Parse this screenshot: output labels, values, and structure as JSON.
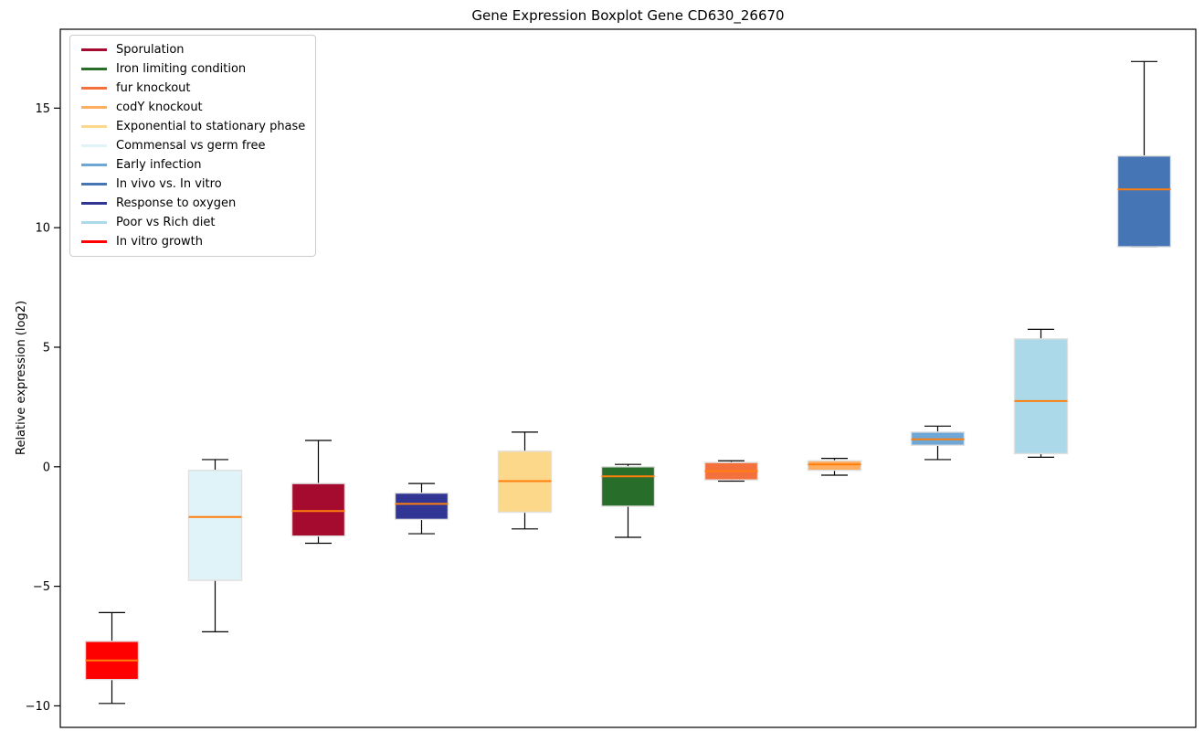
{
  "chart_data": {
    "type": "boxplot",
    "title": "Gene Expression Boxplot Gene CD630_26670",
    "ylabel": "Relative expression (log2)",
    "xlabel": "",
    "ylim": [
      -10.9,
      18.3
    ],
    "yticks": [
      {
        "value": 15,
        "label": "15"
      },
      {
        "value": 10,
        "label": "10"
      },
      {
        "value": 5,
        "label": "5"
      },
      {
        "value": 0,
        "label": "0"
      },
      {
        "value": -5,
        "label": "−5"
      },
      {
        "value": -10,
        "label": "−10"
      }
    ],
    "grid": false,
    "x_tick_labels_visible": false,
    "median_color": "#ff7f0e",
    "whisker_color": "#000000",
    "box_edge_color": "#e0e0e0",
    "series": [
      {
        "name": "In vitro growth",
        "color": "#ff0000",
        "whisker_low": -9.9,
        "q1": -8.9,
        "median": -8.1,
        "q3": -7.3,
        "whisker_high": -6.1
      },
      {
        "name": "Commensal vs germ free",
        "color": "#e0f3f8",
        "whisker_low": -6.9,
        "q1": -4.75,
        "median": -2.1,
        "q3": -0.15,
        "whisker_high": 0.3
      },
      {
        "name": "Sporulation",
        "color": "#a50b2e",
        "whisker_low": -3.2,
        "q1": -2.9,
        "median": -1.85,
        "q3": -0.7,
        "whisker_high": 1.1
      },
      {
        "name": "Response to oxygen",
        "color": "#313695",
        "whisker_low": -2.8,
        "q1": -2.2,
        "median": -1.55,
        "q3": -1.1,
        "whisker_high": -0.7
      },
      {
        "name": "Exponential to stationary phase",
        "color": "#fcd98a",
        "whisker_low": -2.6,
        "q1": -1.9,
        "median": -0.6,
        "q3": 0.65,
        "whisker_high": 1.45
      },
      {
        "name": "Iron limiting condition",
        "color": "#286e2a",
        "whisker_low": -2.95,
        "q1": -1.65,
        "median": -0.4,
        "q3": 0.0,
        "whisker_high": 0.1
      },
      {
        "name": "fur knockout",
        "color": "#f4713d",
        "whisker_low": -0.6,
        "q1": -0.55,
        "median": -0.18,
        "q3": 0.18,
        "whisker_high": 0.25
      },
      {
        "name": "codY knockout",
        "color": "#fdae61",
        "whisker_low": -0.35,
        "q1": -0.15,
        "median": 0.1,
        "q3": 0.25,
        "whisker_high": 0.35
      },
      {
        "name": "Early infection",
        "color": "#6ea6d6",
        "whisker_low": 0.3,
        "q1": 0.9,
        "median": 1.15,
        "q3": 1.45,
        "whisker_high": 1.7
      },
      {
        "name": "Poor vs Rich diet",
        "color": "#abd9e9",
        "whisker_low": 0.4,
        "q1": 0.55,
        "median": 2.75,
        "q3": 5.35,
        "whisker_high": 5.75
      },
      {
        "name": "In vivo vs. In vitro",
        "color": "#4575b4",
        "whisker_low": 9.2,
        "q1": 9.2,
        "median": 11.6,
        "q3": 13.0,
        "whisker_high": 16.95
      }
    ]
  },
  "legend": {
    "items": [
      {
        "label": "Sporulation",
        "color": "#a50b2e"
      },
      {
        "label": "Iron limiting condition",
        "color": "#286e2a"
      },
      {
        "label": "fur knockout",
        "color": "#f4713d"
      },
      {
        "label": "codY knockout",
        "color": "#fdae61"
      },
      {
        "label": "Exponential to stationary phase",
        "color": "#fcd98a"
      },
      {
        "label": "Commensal vs germ free",
        "color": "#e0f3f8"
      },
      {
        "label": "Early infection",
        "color": "#6ea6d6"
      },
      {
        "label": "In vivo vs. In vitro",
        "color": "#4575b4"
      },
      {
        "label": "Response to oxygen",
        "color": "#313695"
      },
      {
        "label": "Poor vs Rich diet",
        "color": "#abd9e9"
      },
      {
        "label": "In vitro growth",
        "color": "#ff0000"
      }
    ]
  }
}
